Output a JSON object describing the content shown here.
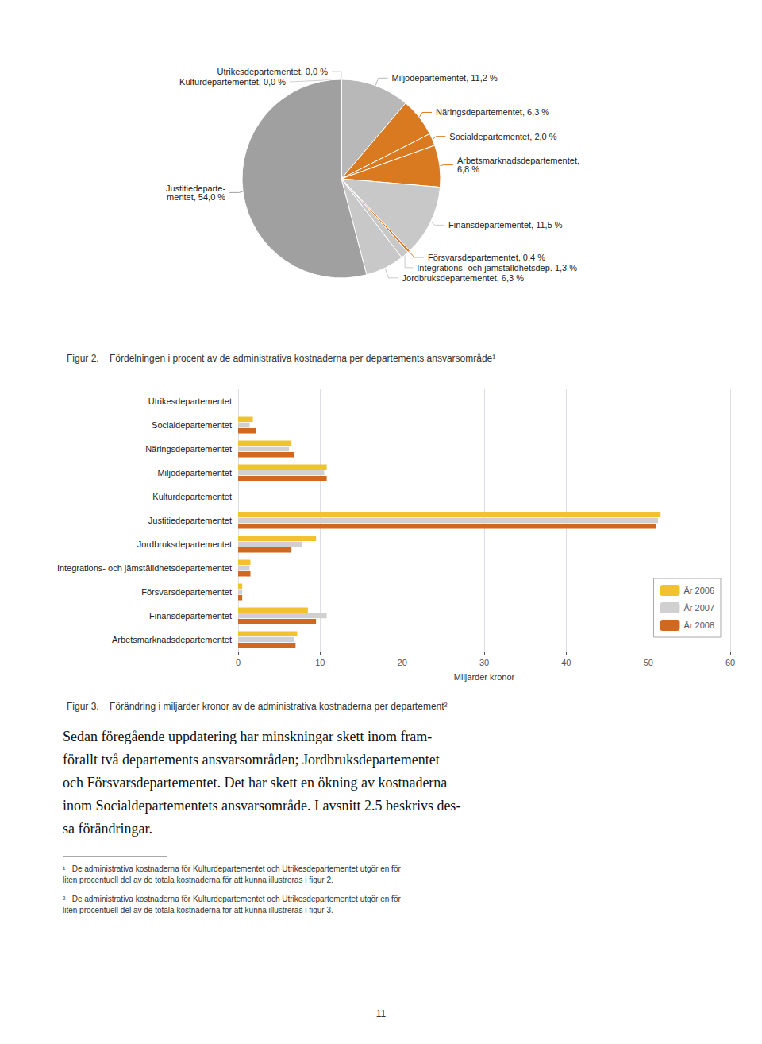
{
  "chart_data": [
    {
      "type": "pie",
      "title": "Figur 2.    Fördelningen i procent av de administrativa kostnaderna per departements ansvarsområde¹",
      "categories": [
        "Miljödepartementet, 11,2 %",
        "Näringsdepartementet, 6,3 %",
        "Socialdepartementet, 2,0 %",
        "Arbetsmarknadsdepartementet,\n6,8 %",
        "Finansdepartementet, 11,5 %",
        "Försvarsdepartementet, 0,4 %",
        "Integrations- och jämställdhetsdep. 1,3 %",
        "Jordbruksdepartementet, 6,3 %",
        "Justitiedeparte-\nmentet, 54,0 %",
        "Kulturdepartementet, 0,0 %",
        "Utrikesdepartementet, 0,0 %"
      ],
      "values": [
        11.2,
        6.3,
        2.0,
        6.8,
        11.5,
        0.4,
        1.3,
        6.3,
        54.0,
        0.001,
        0.001
      ],
      "colors": [
        "#b8b8b8",
        "#d97920",
        "#d97920",
        "#d97920",
        "#c8c8c8",
        "#d97920",
        "#c8c8c8",
        "#c8c8c8",
        "#a0a0a0",
        "#d0d0d0",
        "#d0d0d0"
      ]
    },
    {
      "type": "bar",
      "orientation": "horizontal",
      "title": "Figur 3.    Förändring i miljarder kronor av de administrativa kostnaderna per departement²",
      "x_label": "Miljarder kronor",
      "categories": [
        "Arbetsmarknadsdepartementet",
        "Finansdepartementet",
        "Försvarsdepartementet",
        "Integrations- och jämställdhetsdepartementet",
        "Jordbruksdepartementet",
        "Justitiedepartementet",
        "Kulturdepartementet",
        "Miljödepartementet",
        "Näringsdepartementet",
        "Socialdepartementet",
        "Utrikesdepartementet"
      ],
      "series": [
        {
          "name": "År 2006",
          "color": "#f2c12e",
          "values": [
            7.2,
            8.5,
            0.5,
            1.5,
            9.5,
            51.5,
            0.0,
            10.8,
            6.5,
            1.8,
            0.0
          ]
        },
        {
          "name": "År 2007",
          "color": "#d0d0d0",
          "values": [
            6.8,
            10.8,
            0.5,
            1.4,
            7.8,
            51.2,
            0.0,
            10.5,
            6.2,
            1.4,
            0.0
          ]
        },
        {
          "name": "År 2008",
          "color": "#d06820",
          "values": [
            7.0,
            9.5,
            0.5,
            1.5,
            6.5,
            51.0,
            0.0,
            10.8,
            6.8,
            2.2,
            0.0
          ]
        }
      ],
      "xlim": [
        0,
        60
      ],
      "xticks": [
        0,
        10,
        20,
        30,
        40,
        50,
        60
      ],
      "grid": true,
      "legend": "lower right",
      "annotations": [
        "Sedan föregående uppdatering har minskningar skett inom fram-\nförallt två departements ansvarsområden; Jordbruksdepartementet\noch Försvarsdepartementet. Det har skett en ökning av kostnaderna\ninom Socialdepartementets ansvarsområde. I avsnitt 2.5 beskrivs des-\nsa förändringar.",
        "¹   De administrativa kostnaderna för Kulturdepartementet och Utrikesdepartementet utgör en för\nliten procentuell del av de totala kostnaderna för att kunna illustreras i figur 2.",
        "²   De administrativa kostnaderna för Kulturdepartementet och Utrikesdepartementet utgör en för\nliten procentuell del av de totala kostnaderna för att kunna illustreras i figur 3.",
        "11"
      ]
    }
  ]
}
